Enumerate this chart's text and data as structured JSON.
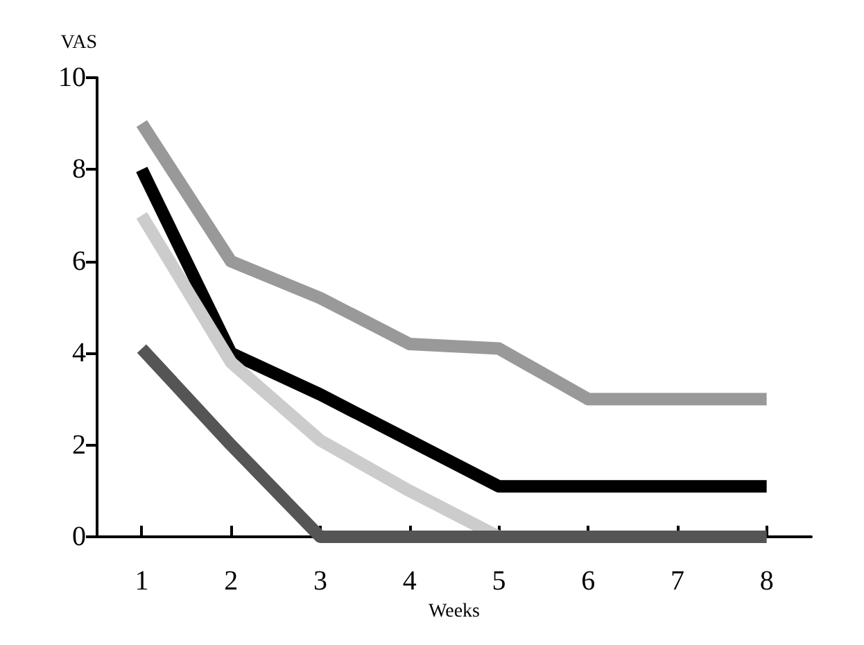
{
  "chart_data": {
    "type": "line",
    "ylabel": "VAS",
    "xlabel": "Weeks",
    "categories": [
      "1",
      "2",
      "3",
      "4",
      "5",
      "6",
      "7",
      "8"
    ],
    "series": [
      {
        "color": "#999999",
        "values": [
          9,
          6,
          5.2,
          4.2,
          4.1,
          3,
          3,
          3
        ]
      },
      {
        "color": "#000000",
        "values": [
          8,
          4,
          3.1,
          2.1,
          1.1,
          1.1,
          1.1,
          1.1
        ]
      },
      {
        "color": "#cccccc",
        "values": [
          7,
          3.8,
          2.1,
          1,
          0,
          null,
          null,
          null
        ]
      },
      {
        "color": "#555555",
        "values": [
          4.1,
          2,
          0,
          0,
          0,
          0,
          0,
          0
        ]
      }
    ],
    "ylim": [
      0,
      10
    ],
    "yticks": [
      0,
      2,
      4,
      6,
      8,
      10
    ],
    "grid": false,
    "marker": "none",
    "line_style": "solid"
  }
}
